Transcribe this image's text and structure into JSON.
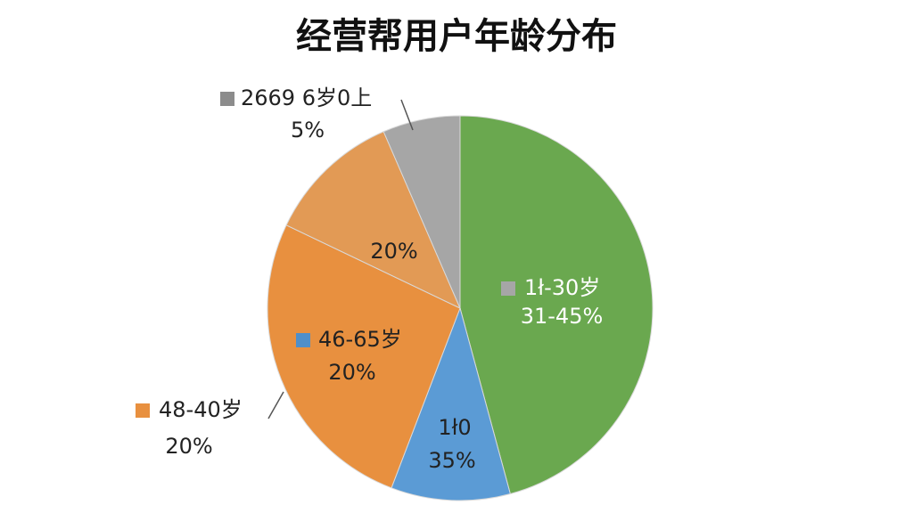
{
  "chart_data": {
    "type": "pie",
    "title": "经营帮用户年龄分布",
    "values": [
      45.8,
      10,
      26.3,
      11.4,
      6.5
    ],
    "colors": [
      "#6aa84f",
      "#5b9bd5",
      "#e8903f",
      "#e29a55",
      "#a6a6a6"
    ],
    "start_angle": 0,
    "direction": "clockwise",
    "annotations": [
      {
        "lines": [
          "2669 6岁0上",
          "5%"
        ],
        "marker_color": "#8c8c8c",
        "color": "#222222"
      },
      {
        "lines": [
          "20%"
        ],
        "color": "#222222"
      },
      {
        "lines": [
          "1ł-30岁",
          "31-45%"
        ],
        "marker_color": "#a6a6a6",
        "color": "#ffffff"
      },
      {
        "lines": [
          "46-65岁",
          "20%"
        ],
        "marker_color": "#4f8fca",
        "color": "#222222"
      },
      {
        "lines": [
          "48-40岁",
          "20%"
        ],
        "marker_color": "#e8903f",
        "color": "#222222"
      },
      {
        "lines": [
          "1ł0",
          "35%"
        ],
        "color": "#222222"
      }
    ]
  }
}
